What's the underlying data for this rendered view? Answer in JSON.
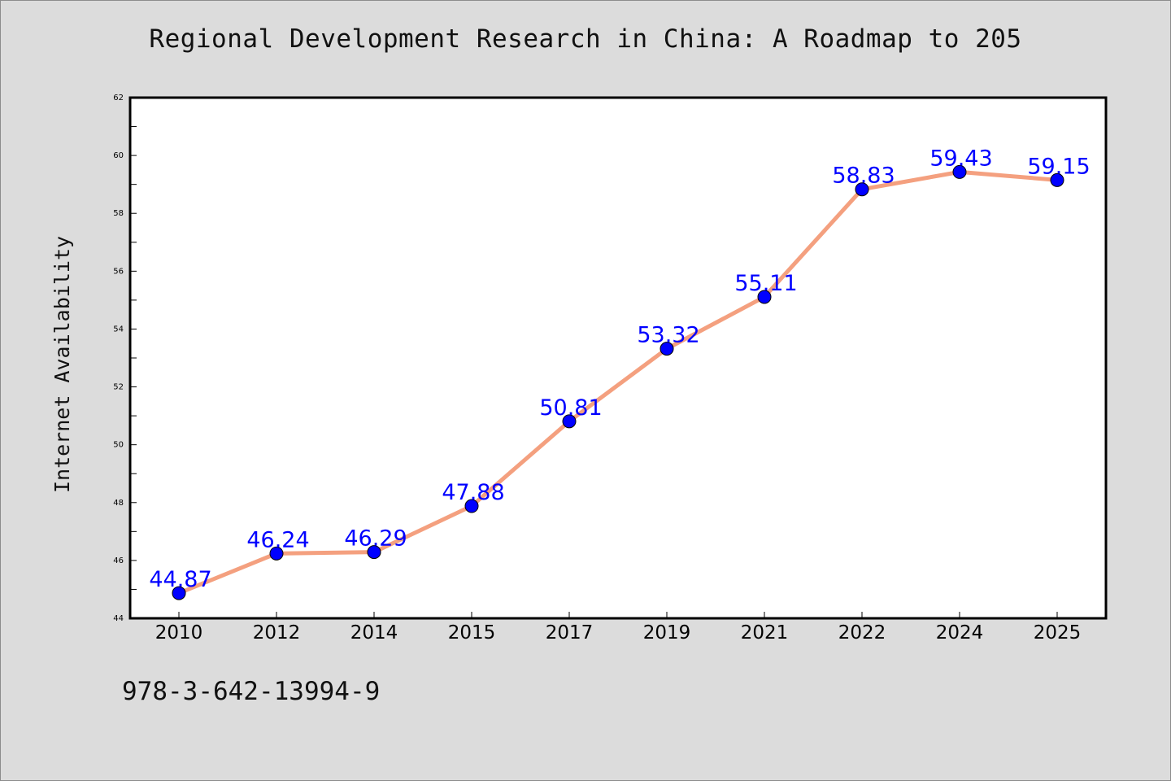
{
  "chart_data": {
    "type": "line",
    "title": "Regional Development Research in China: A Roadmap to 205",
    "xlabel": "",
    "ylabel": "Internet Availability",
    "categories": [
      "2010",
      "2012",
      "2014",
      "2015",
      "2017",
      "2019",
      "2021",
      "2022",
      "2024",
      "2025"
    ],
    "series": [
      {
        "values": [
          44.87,
          46.24,
          46.29,
          47.88,
          50.81,
          53.32,
          55.11,
          58.83,
          59.43,
          59.15
        ],
        "data_labels": [
          "44.87",
          "46.24",
          "46.29",
          "47.88",
          "50.81",
          "53.32",
          "55.11",
          "58.83",
          "59.43",
          "59.15"
        ],
        "line_color": "#f4a07f",
        "marker_color": "#0000ff"
      }
    ],
    "ylim": [
      44,
      62
    ],
    "yticks": [
      "44",
      "46",
      "48",
      "50",
      "52",
      "54",
      "56",
      "58",
      "60",
      "62"
    ],
    "grid": false,
    "legend": "none",
    "label_color": "#0000ff",
    "background": "#dcdcdc",
    "plot_background": "#ffffff"
  },
  "footer": {
    "code": "978-3-642-13994-9"
  }
}
